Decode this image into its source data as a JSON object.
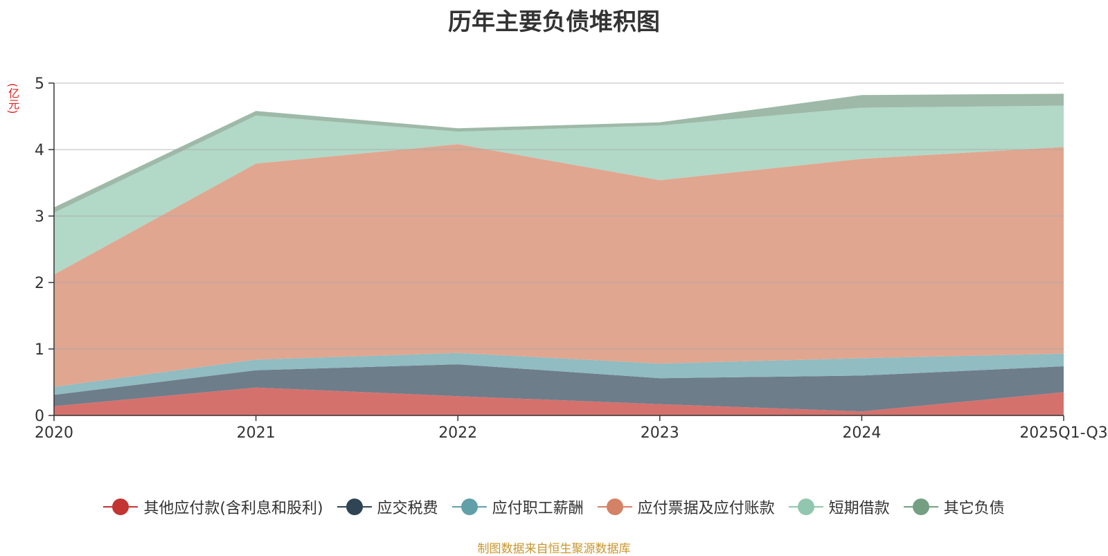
{
  "chart_data": {
    "type": "area",
    "stacked": true,
    "title": "历年主要负债堆积图",
    "ylabel": "(亿元)",
    "ylim": [
      0,
      5
    ],
    "yticks": [
      0,
      1,
      2,
      3,
      4,
      5
    ],
    "categories": [
      "2020",
      "2021",
      "2022",
      "2023",
      "2024",
      "2025Q1-Q3"
    ],
    "series": [
      {
        "name": "其他应付款(含利息和股利)",
        "color": "#c23531",
        "fill": "#d5716d",
        "values": [
          0.14,
          0.42,
          0.29,
          0.17,
          0.06,
          0.35
        ]
      },
      {
        "name": "应交税费",
        "color": "#2f4554",
        "fill": "#6e7d8a",
        "values": [
          0.17,
          0.26,
          0.48,
          0.39,
          0.54,
          0.39
        ]
      },
      {
        "name": "应付职工薪酬",
        "color": "#61a0a8",
        "fill": "#90bcc2",
        "values": [
          0.12,
          0.16,
          0.17,
          0.22,
          0.26,
          0.19
        ]
      },
      {
        "name": "应付票据及应付账款",
        "color": "#d48265",
        "fill": "#e0a690",
        "values": [
          1.69,
          2.95,
          3.14,
          2.76,
          3.0,
          3.11
        ]
      },
      {
        "name": "短期借款",
        "color": "#91c7ae",
        "fill": "#b2d8c7",
        "values": [
          0.93,
          0.72,
          0.19,
          0.82,
          0.77,
          0.62
        ]
      },
      {
        "name": "其它负债",
        "color": "#749f83",
        "fill": "#9eb9a8",
        "values": [
          0.08,
          0.07,
          0.05,
          0.05,
          0.19,
          0.18
        ]
      }
    ],
    "legend_position": "bottom",
    "grid": true
  },
  "source_note": "制图数据来自恒生聚源数据库"
}
